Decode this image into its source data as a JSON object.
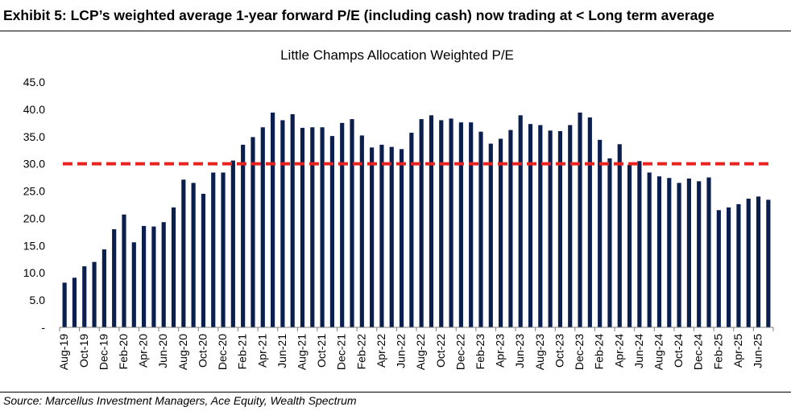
{
  "exhibit": {
    "title": "Exhibit 5: LCP’s weighted average 1-year forward P/E (including cash) now trading at < Long term average",
    "source": "Source: Marcellus Investment Managers, Ace Equity, Wealth Spectrum"
  },
  "chart_data": {
    "type": "bar",
    "title": "Little Champs Allocation Weighted P/E",
    "xlabel": "",
    "ylabel": "",
    "ylim": [
      0,
      45
    ],
    "yticks": [
      "-",
      "5.0",
      "10.0",
      "15.0",
      "20.0",
      "25.0",
      "30.0",
      "35.0",
      "40.0",
      "45.0"
    ],
    "grid": false,
    "bar_color": "#0b1f4f",
    "reference_line": {
      "value": 30.0,
      "color": "#e8231f",
      "style": "dashed"
    },
    "x_tick_labels": [
      "Aug-19",
      "Oct-19",
      "Dec-19",
      "Feb-20",
      "Apr-20",
      "Jun-20",
      "Aug-20",
      "Oct-20",
      "Dec-20",
      "Feb-21",
      "Apr-21",
      "Jun-21",
      "Aug-21",
      "Oct-21",
      "Dec-21",
      "Feb-22",
      "Apr-22",
      "Jun-22",
      "Aug-22",
      "Oct-22",
      "Dec-22",
      "Feb-23",
      "Apr-23",
      "Jun-23",
      "Aug-23",
      "Oct-23",
      "Dec-23",
      "Feb-24",
      "Apr-24",
      "Jun-24",
      "Aug-24",
      "Oct-24",
      "Dec-24",
      "Feb-25",
      "Apr-25",
      "Jun-25"
    ],
    "categories": [
      "Aug-19",
      "Sep-19",
      "Oct-19",
      "Nov-19",
      "Dec-19",
      "Jan-20",
      "Feb-20",
      "Mar-20",
      "Apr-20",
      "May-20",
      "Jun-20",
      "Jul-20",
      "Aug-20",
      "Sep-20",
      "Oct-20",
      "Nov-20",
      "Dec-20",
      "Jan-21",
      "Feb-21",
      "Mar-21",
      "Apr-21",
      "May-21",
      "Jun-21",
      "Jul-21",
      "Aug-21",
      "Sep-21",
      "Oct-21",
      "Nov-21",
      "Dec-21",
      "Jan-22",
      "Feb-22",
      "Mar-22",
      "Apr-22",
      "May-22",
      "Jun-22",
      "Jul-22",
      "Aug-22",
      "Sep-22",
      "Oct-22",
      "Nov-22",
      "Dec-22",
      "Jan-23",
      "Feb-23",
      "Mar-23",
      "Apr-23",
      "May-23",
      "Jun-23",
      "Jul-23",
      "Aug-23",
      "Sep-23",
      "Oct-23",
      "Nov-23",
      "Dec-23",
      "Jan-24",
      "Feb-24",
      "Mar-24",
      "Apr-24",
      "May-24",
      "Jun-24",
      "Jul-24",
      "Aug-24",
      "Sep-24",
      "Oct-24",
      "Nov-24",
      "Dec-24",
      "Jan-25",
      "Feb-25",
      "Mar-25",
      "Apr-25",
      "May-25",
      "Jun-25",
      "Jul-25"
    ],
    "values": [
      8.2,
      9.1,
      11.2,
      12.0,
      14.3,
      18.0,
      20.7,
      15.6,
      18.6,
      18.5,
      19.3,
      22.0,
      27.1,
      26.5,
      24.5,
      28.4,
      28.4,
      30.6,
      33.5,
      34.9,
      36.7,
      39.4,
      38.0,
      39.1,
      36.6,
      36.7,
      36.7,
      35.1,
      37.5,
      38.2,
      35.2,
      33.0,
      33.5,
      33.1,
      32.7,
      35.7,
      38.2,
      38.9,
      38.0,
      38.3,
      37.6,
      37.6,
      35.9,
      33.7,
      34.6,
      36.2,
      38.9,
      37.3,
      37.1,
      36.1,
      36.0,
      37.1,
      39.4,
      38.5,
      34.4,
      31.0,
      33.6,
      29.8,
      30.5,
      28.4,
      27.7,
      27.4,
      26.5,
      27.3,
      26.8,
      27.5,
      21.5,
      22.0,
      22.6,
      23.6,
      24.0,
      23.4
    ]
  }
}
